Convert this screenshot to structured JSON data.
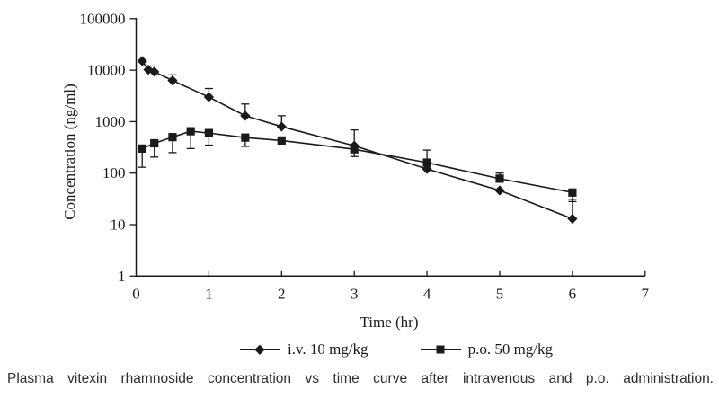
{
  "figure": {
    "caption": "Plasma vitexin rhamnoside concentration vs time curve after intravenous and p.o. administration."
  },
  "chart_data": {
    "type": "line",
    "title": "",
    "xlabel": "Time (hr)",
    "ylabel": "Concentration (ng/ml)",
    "grid": false,
    "legend_position": "bottom",
    "x_axis": {
      "min": 0,
      "max": 7,
      "ticks": [
        0,
        1,
        2,
        3,
        4,
        5,
        6,
        7
      ]
    },
    "y_axis": {
      "scale": "log",
      "min": 1,
      "max": 100000,
      "ticks": [
        1,
        10,
        100,
        1000,
        10000,
        100000
      ],
      "tick_labels": [
        "1",
        "10",
        "100",
        "1000",
        "10000",
        "100000"
      ]
    },
    "series": [
      {
        "name": "i.v. 10 mg/kg",
        "marker": "diamond",
        "color": "#1a1a1a",
        "x": [
          0.083,
          0.167,
          0.25,
          0.5,
          1,
          1.5,
          2,
          3,
          4,
          5,
          6
        ],
        "y": [
          15000,
          10200,
          9300,
          6300,
          3000,
          1300,
          800,
          340,
          120,
          46,
          13
        ],
        "err_up": [
          null,
          null,
          null,
          8100,
          4400,
          2200,
          1300,
          690,
          null,
          null,
          31
        ],
        "err_dn": [
          null,
          null,
          null,
          null,
          null,
          null,
          null,
          null,
          null,
          null,
          null
        ]
      },
      {
        "name": "p.o. 50 mg/kg",
        "marker": "square",
        "color": "#1a1a1a",
        "x": [
          0.083,
          0.25,
          0.5,
          0.75,
          1,
          1.5,
          2,
          3,
          4,
          5,
          6
        ],
        "y": [
          300,
          380,
          500,
          650,
          600,
          490,
          430,
          290,
          160,
          78,
          42
        ],
        "err_up": [
          null,
          null,
          null,
          null,
          null,
          null,
          null,
          null,
          280,
          100,
          null
        ],
        "err_dn": [
          130,
          205,
          250,
          300,
          350,
          330,
          null,
          210,
          null,
          null,
          28
        ]
      }
    ]
  }
}
